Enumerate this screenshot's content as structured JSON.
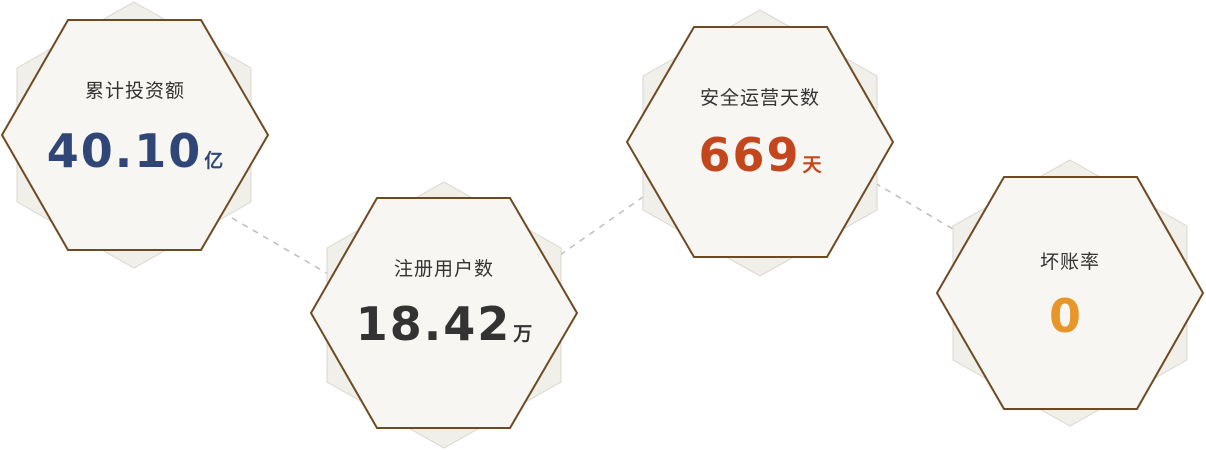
{
  "stats": [
    {
      "label": "累计投资额",
      "value": "40.10",
      "unit": "亿",
      "color": "#2f4677"
    },
    {
      "label": "注册用户数",
      "value": "18.42",
      "unit": "万",
      "color": "#333333"
    },
    {
      "label": "安全运营天数",
      "value": "669",
      "unit": "天",
      "color": "#c4461c"
    },
    {
      "label": "坏账率",
      "value": "0",
      "unit": "",
      "color": "#e8962a"
    }
  ]
}
